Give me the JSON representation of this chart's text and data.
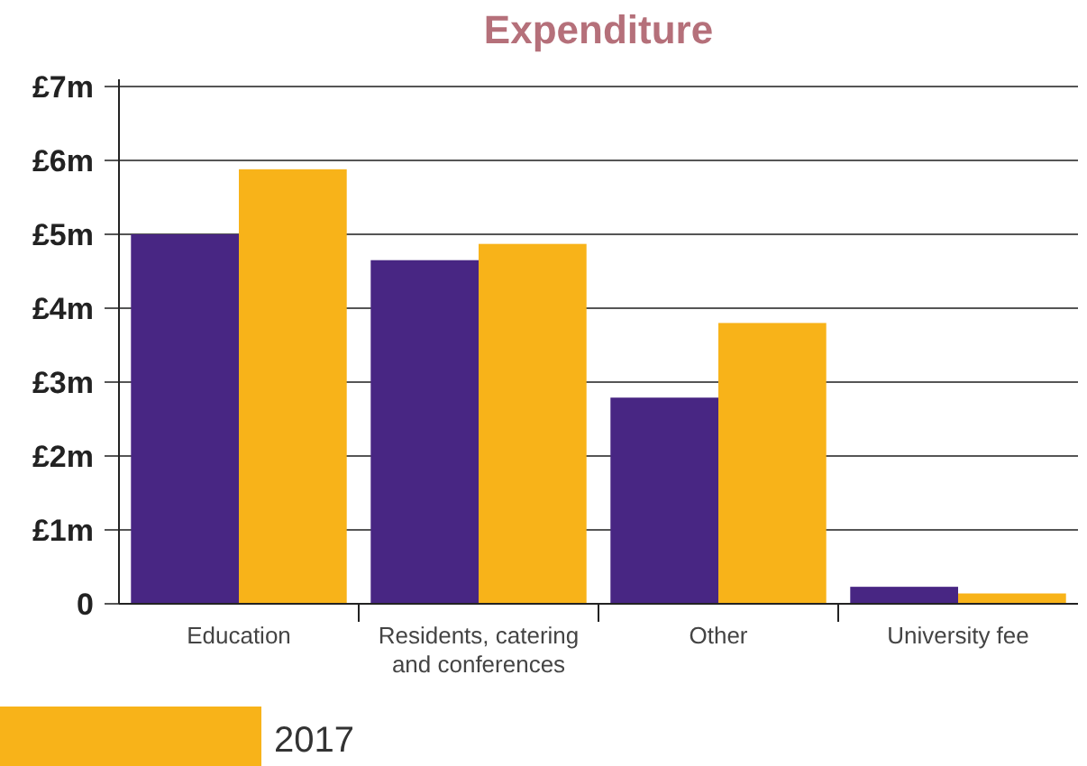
{
  "chart_data": {
    "type": "bar",
    "title": "Expenditure",
    "categories": [
      "Education",
      "Residents, catering and conferences",
      "Other",
      "University fee"
    ],
    "series": [
      {
        "color": "#482683",
        "values": [
          5.0,
          4.65,
          2.79,
          0.23
        ]
      },
      {
        "name": "2017",
        "color": "#f8b319",
        "values": [
          5.88,
          4.87,
          3.8,
          0.14
        ]
      }
    ],
    "ylim": [
      0,
      7
    ],
    "yticks": [
      {
        "value": 0,
        "label": "0"
      },
      {
        "value": 1,
        "label": "£1m"
      },
      {
        "value": 2,
        "label": "£2m"
      },
      {
        "value": 3,
        "label": "£3m"
      },
      {
        "value": 4,
        "label": "£4m"
      },
      {
        "value": 5,
        "label": "£5m"
      },
      {
        "value": 6,
        "label": "£6m"
      },
      {
        "value": 7,
        "label": "£7m"
      }
    ],
    "grid": "y",
    "legend": "bottom left"
  }
}
